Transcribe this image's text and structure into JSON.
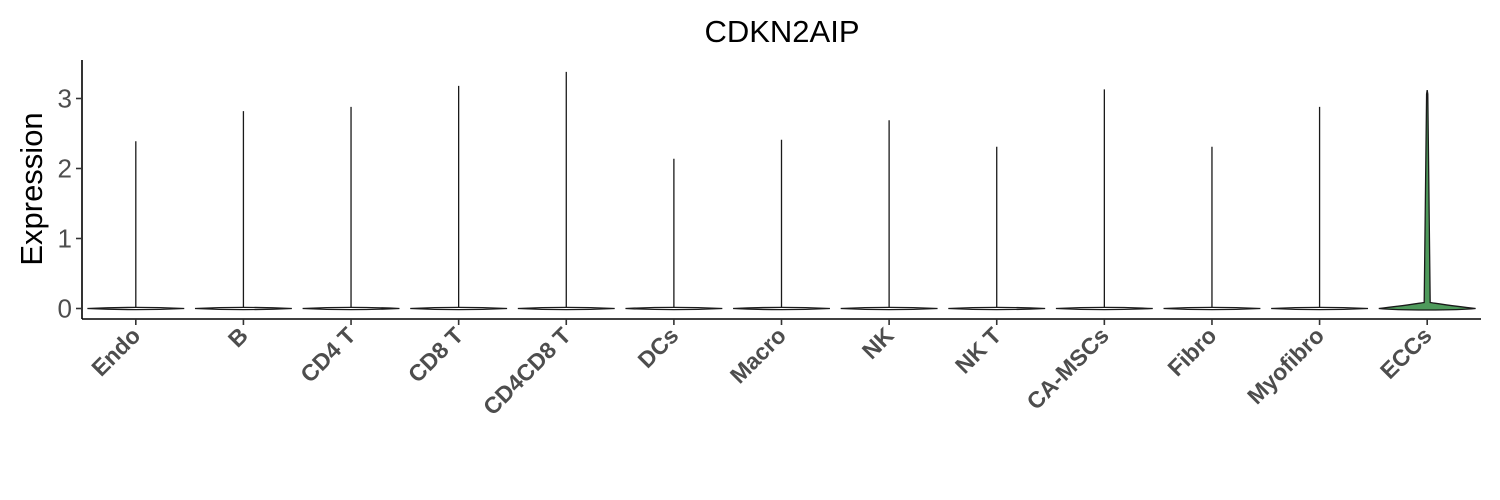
{
  "chart_data": {
    "type": "violin",
    "title": "CDKN2AIP",
    "xlabel": "",
    "ylabel": "Expression",
    "ylim": [
      -0.15,
      3.55
    ],
    "yticks": [
      0,
      1,
      2,
      3
    ],
    "grid": false,
    "categories": [
      "Endo",
      "B",
      "CD4 T",
      "CD8 T",
      "CD4CD8 T",
      "DCs",
      "Macro",
      "NK",
      "NK T",
      "CA-MSCs",
      "Fibro",
      "Myofibro",
      "ECCs"
    ],
    "max_values": [
      2.39,
      2.82,
      2.88,
      3.18,
      3.38,
      2.14,
      2.41,
      2.69,
      2.31,
      3.13,
      2.31,
      2.88,
      3.12
    ],
    "highlight": {
      "category": "ECCs",
      "color": "#4e9a5b"
    },
    "base_color": "#ffffff",
    "outline_color": "#1a1a1a"
  }
}
